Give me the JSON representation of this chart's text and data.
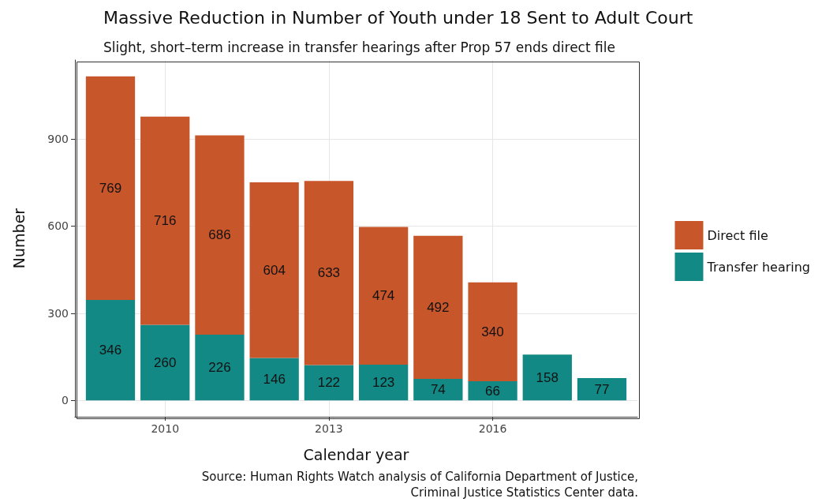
{
  "chart_data": {
    "type": "bar",
    "title": "Massive Reduction in Number of Youth under 18 Sent to Adult Court",
    "subtitle": "Slight, short–term increase in transfer hearings after Prop 57 ends direct file",
    "xlabel": "Calendar year",
    "ylabel": "Number",
    "x": [
      2009,
      2010,
      2011,
      2012,
      2013,
      2014,
      2015,
      2016,
      2017,
      2018
    ],
    "series": [
      {
        "name": "Transfer hearing",
        "color": "#128985",
        "values": [
          346,
          260,
          226,
          146,
          122,
          123,
          74,
          66,
          158,
          77
        ]
      },
      {
        "name": "Direct file",
        "color": "#c8562b",
        "values": [
          769,
          716,
          686,
          604,
          633,
          474,
          492,
          340,
          null,
          null
        ]
      }
    ],
    "stacked": true,
    "data_labels": true,
    "xlim": [
      2008.35,
      2018.65
    ],
    "xticks": [
      2010,
      2013,
      2016
    ],
    "ylim": [
      -56,
      1171
    ],
    "yticks": [
      0,
      300,
      600,
      900
    ],
    "grid": true,
    "legend": "right",
    "annotations": [
      "Source: Human Rights Watch analysis of California Department of Justice,\nCriminal Justice Statistics Center data."
    ]
  }
}
